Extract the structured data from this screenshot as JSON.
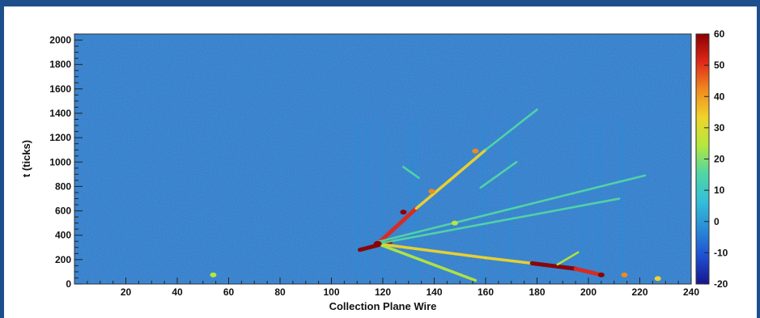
{
  "chart_data": {
    "type": "heatmap",
    "title": "",
    "xlabel": "Collection Plane Wire",
    "ylabel": "t (ticks)",
    "xlim": [
      0,
      240
    ],
    "ylim": [
      0,
      2050
    ],
    "x_ticks": [
      20,
      40,
      60,
      80,
      100,
      120,
      140,
      160,
      180,
      200,
      220,
      240
    ],
    "y_ticks": [
      0,
      200,
      400,
      600,
      800,
      1000,
      1200,
      1400,
      1600,
      1800,
      2000
    ],
    "colorbar": {
      "range": [
        -20,
        60
      ],
      "ticks": [
        -20,
        -10,
        0,
        10,
        20,
        30,
        40,
        50,
        60
      ],
      "colors": [
        "#16168c",
        "#1e50d2",
        "#2a8cd6",
        "#33c0d8",
        "#52d6a4",
        "#b4e83c",
        "#f0d42a",
        "#f08a1e",
        "#e0281a",
        "#8c0000"
      ],
      "background_value": 2,
      "background_color": "#2b78c8"
    },
    "grid": false,
    "legend": "colorbar-right",
    "vertex": {
      "wire": 118,
      "tick": 330
    },
    "tracks": [
      {
        "from": [
          111,
          280
        ],
        "to": [
          123,
          345
        ],
        "value": 60
      },
      {
        "from": [
          118,
          330
        ],
        "to": [
          133,
          620
        ],
        "value": 48
      },
      {
        "from": [
          133,
          620
        ],
        "to": [
          146,
          850
        ],
        "value": 34
      },
      {
        "from": [
          146,
          850
        ],
        "to": [
          160,
          1100
        ],
        "value": 30
      },
      {
        "from": [
          160,
          1100
        ],
        "to": [
          180,
          1430
        ],
        "value": 16
      },
      {
        "from": [
          118,
          330
        ],
        "to": [
          160,
          215
        ],
        "value": 32
      },
      {
        "from": [
          160,
          215
        ],
        "to": [
          178,
          170
        ],
        "value": 32
      },
      {
        "from": [
          178,
          170
        ],
        "to": [
          195,
          125
        ],
        "value": 56
      },
      {
        "from": [
          195,
          125
        ],
        "to": [
          204,
          80
        ],
        "value": 54
      },
      {
        "from": [
          118,
          330
        ],
        "to": [
          156,
          30
        ],
        "value": 28
      },
      {
        "from": [
          118,
          330
        ],
        "to": [
          212,
          700
        ],
        "value": 15
      },
      {
        "from": [
          118,
          345
        ],
        "to": [
          222,
          890
        ],
        "value": 12
      },
      {
        "from": [
          134,
          870
        ],
        "to": [
          128,
          960
        ],
        "value": 14
      },
      {
        "from": [
          158,
          790
        ],
        "to": [
          172,
          1000
        ],
        "value": 12
      },
      {
        "from": [
          188,
          160
        ],
        "to": [
          196,
          260
        ],
        "value": 22
      }
    ],
    "hotspots": [
      {
        "wire": 128,
        "tick": 590,
        "value": 60
      },
      {
        "wire": 205,
        "tick": 75,
        "value": 60
      },
      {
        "wire": 139,
        "tick": 760,
        "value": 42
      },
      {
        "wire": 156,
        "tick": 1090,
        "value": 38
      },
      {
        "wire": 54,
        "tick": 75,
        "value": 24
      },
      {
        "wire": 214,
        "tick": 75,
        "value": 40
      },
      {
        "wire": 227,
        "tick": 45,
        "value": 30
      },
      {
        "wire": 148,
        "tick": 500,
        "value": 28
      }
    ],
    "vertical_bands": [
      {
        "wire": 110,
        "value": -4
      },
      {
        "wire": 114,
        "value": -5
      },
      {
        "wire": 120,
        "value": -3
      },
      {
        "wire": 131,
        "value": -5
      },
      {
        "wire": 133,
        "value": -4
      },
      {
        "wire": 159,
        "value": -4
      },
      {
        "wire": 170,
        "value": -5
      },
      {
        "wire": 198,
        "value": -4
      },
      {
        "wire": 204,
        "value": -5
      },
      {
        "wire": 213,
        "value": -3
      }
    ]
  }
}
